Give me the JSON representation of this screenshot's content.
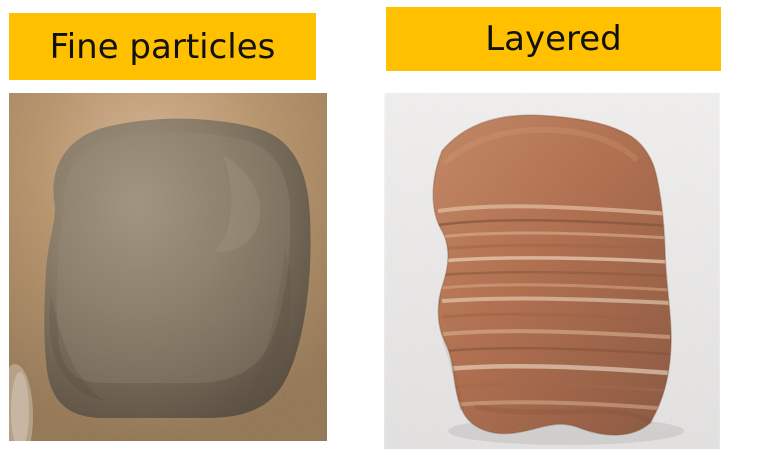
{
  "panels": {
    "left": {
      "label": "Fine particles",
      "image_icon": "fine-grained-rock-icon"
    },
    "right": {
      "label": "Layered",
      "image_icon": "layered-rock-icon"
    }
  },
  "colors": {
    "label_background": "#ffc000",
    "label_text": "#111111",
    "left_photo_background": "#b58f63",
    "right_photo_background": "#efefef"
  }
}
